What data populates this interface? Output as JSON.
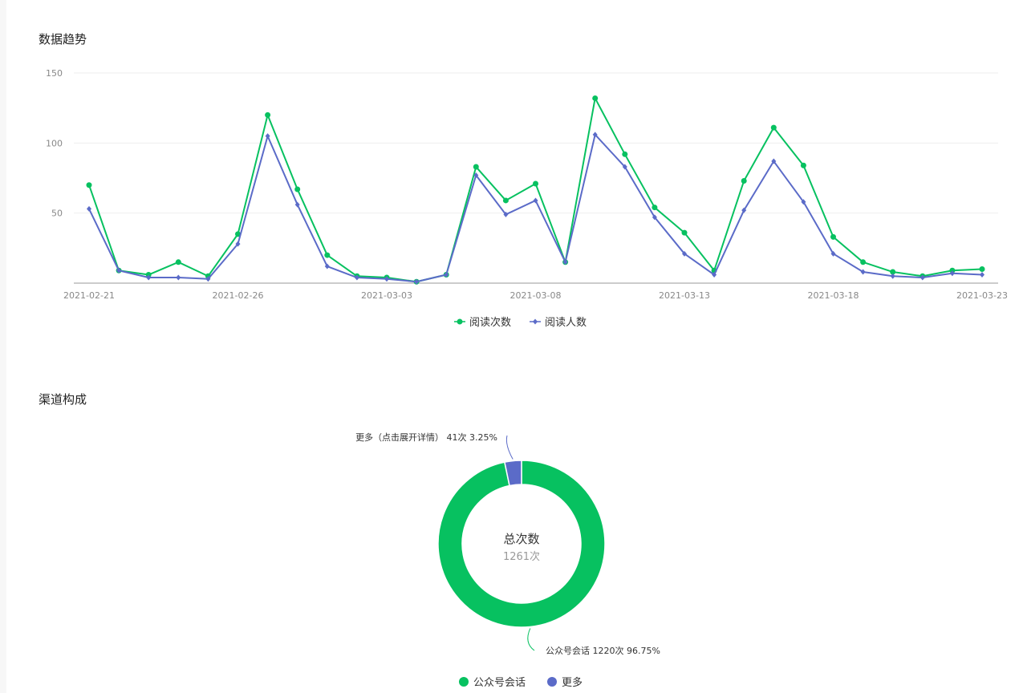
{
  "trend": {
    "title": "数据趋势"
  },
  "channel": {
    "title": "渠道构成"
  },
  "chart_data": [
    {
      "type": "line",
      "title": "数据趋势",
      "ylim": [
        0,
        150
      ],
      "yticks": [
        50,
        100,
        150
      ],
      "grid": true,
      "legend_position": "bottom-center",
      "x": [
        "2021-02-21",
        "2021-02-22",
        "2021-02-23",
        "2021-02-24",
        "2021-02-25",
        "2021-02-26",
        "2021-02-27",
        "2021-02-28",
        "2021-03-01",
        "2021-03-02",
        "2021-03-03",
        "2021-03-04",
        "2021-03-05",
        "2021-03-06",
        "2021-03-07",
        "2021-03-08",
        "2021-03-09",
        "2021-03-10",
        "2021-03-11",
        "2021-03-12",
        "2021-03-13",
        "2021-03-14",
        "2021-03-15",
        "2021-03-16",
        "2021-03-17",
        "2021-03-18",
        "2021-03-19",
        "2021-03-20",
        "2021-03-21",
        "2021-03-22",
        "2021-03-23"
      ],
      "xtick_labels": [
        "2021-02-21",
        "2021-02-26",
        "2021-03-03",
        "2021-03-08",
        "2021-03-13",
        "2021-03-18",
        "2021-03-23"
      ],
      "series": [
        {
          "name": "阅读次数",
          "color": "#07c160",
          "marker": "circle",
          "values": [
            70,
            9,
            6,
            15,
            5,
            35,
            120,
            67,
            20,
            5,
            4,
            1,
            6,
            83,
            59,
            71,
            15,
            132,
            92,
            54,
            36,
            9,
            73,
            111,
            84,
            33,
            15,
            8,
            5,
            9,
            10
          ]
        },
        {
          "name": "阅读人数",
          "color": "#5b6bc8",
          "marker": "diamond",
          "values": [
            53,
            9,
            4,
            4,
            3,
            28,
            105,
            56,
            12,
            4,
            3,
            1,
            6,
            77,
            49,
            59,
            15,
            106,
            83,
            47,
            21,
            6,
            52,
            87,
            58,
            21,
            8,
            5,
            4,
            7,
            6
          ]
        }
      ]
    },
    {
      "type": "pie",
      "title": "渠道构成",
      "donut": true,
      "center_label": "总次数",
      "center_value": "1261次",
      "legend_position": "bottom-center",
      "slices": [
        {
          "name": "公众号会话",
          "value": 1220,
          "label": "公众号会话 1220次 96.75%",
          "color": "#07c160"
        },
        {
          "name": "更多",
          "value": 41,
          "label": "更多（点击展开详情） 41次 3.25%",
          "color": "#5b6bc8"
        }
      ]
    }
  ]
}
